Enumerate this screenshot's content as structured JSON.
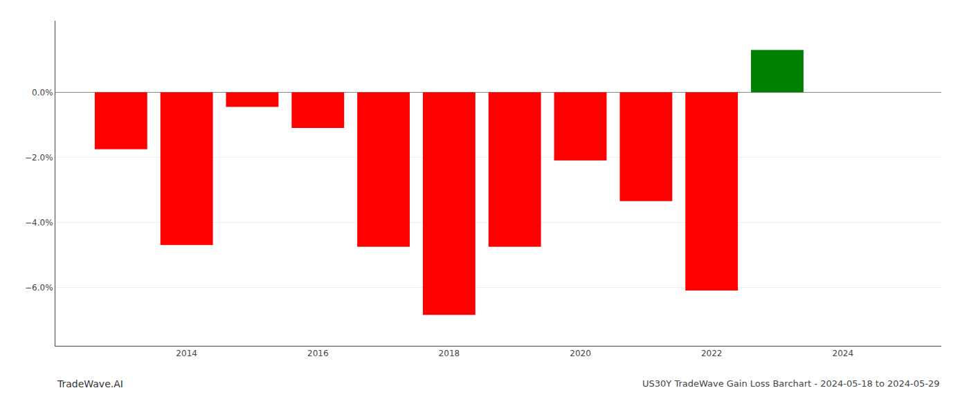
{
  "chart_data": {
    "type": "bar",
    "title": "US30Y TradeWave Gain Loss Barchart - 2024-05-18 to 2024-05-29",
    "annotations": [
      "TradeWave.AI"
    ],
    "x": [
      2013,
      2014,
      2015,
      2016,
      2017,
      2018,
      2019,
      2020,
      2021,
      2022,
      2023
    ],
    "values": [
      -1.75,
      -4.7,
      -0.45,
      -1.1,
      -4.75,
      -6.85,
      -4.75,
      -2.1,
      -3.35,
      -6.1,
      1.3
    ],
    "colors": [
      "#ff0000",
      "#ff0000",
      "#ff0000",
      "#ff0000",
      "#ff0000",
      "#ff0000",
      "#ff0000",
      "#ff0000",
      "#ff0000",
      "#ff0000",
      "#008000"
    ],
    "xlim": [
      2012.0,
      2025.5
    ],
    "xticks": [
      2014,
      2016,
      2018,
      2020,
      2022,
      2024
    ],
    "ylim": [
      -7.8,
      2.2
    ],
    "yticks": [
      {
        "value": 0.0,
        "label": "0.0%"
      },
      {
        "value": -2.0,
        "label": "−2.0%"
      },
      {
        "value": -4.0,
        "label": "−4.0%"
      },
      {
        "value": -6.0,
        "label": "−6.0%"
      }
    ],
    "grid": true
  }
}
